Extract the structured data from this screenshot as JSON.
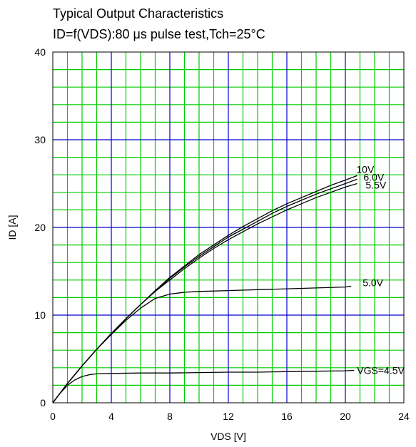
{
  "chart_data": {
    "type": "line",
    "title": "Typical Output Characteristics",
    "subtitle": "ID=f(VDS):80 μs pulse test,Tch=25°C",
    "xlabel": "VDS [V]",
    "ylabel": "ID [A]",
    "xlim": [
      0,
      24
    ],
    "ylim": [
      0,
      40
    ],
    "x_major_ticks": [
      0,
      4,
      8,
      12,
      16,
      20,
      24
    ],
    "y_major_ticks": [
      0,
      10,
      20,
      30,
      40
    ],
    "x_minor_step": 1,
    "y_minor_step": 2,
    "grid": true,
    "legend": "inline labels at right end of curves",
    "colors": {
      "background": "#ffffff",
      "minor_grid": "#00cc00",
      "major_grid": "#0000cc",
      "curve": "#000000",
      "frame": "#000000"
    },
    "series": [
      {
        "name": "10V",
        "x": [
          0,
          1,
          2,
          3,
          4,
          5,
          6,
          7,
          8,
          9,
          10,
          11,
          12,
          13,
          14,
          15,
          16,
          17,
          18,
          19,
          20,
          20.8
        ],
        "y": [
          0,
          2.2,
          4.2,
          6.1,
          7.9,
          9.6,
          11.2,
          12.8,
          14.3,
          15.6,
          16.9,
          18.0,
          19.1,
          20.1,
          21.0,
          21.9,
          22.7,
          23.4,
          24.1,
          24.8,
          25.4,
          25.9
        ]
      },
      {
        "name": "6.0V",
        "x": [
          0,
          1,
          2,
          3,
          4,
          5,
          6,
          7,
          8,
          9,
          10,
          11,
          12,
          13,
          14,
          15,
          16,
          17,
          18,
          19,
          20,
          20.8
        ],
        "y": [
          0,
          2.2,
          4.2,
          6.1,
          7.9,
          9.6,
          11.2,
          12.7,
          14.2,
          15.5,
          16.7,
          17.8,
          18.9,
          19.8,
          20.7,
          21.6,
          22.4,
          23.1,
          23.8,
          24.4,
          25.0,
          25.5
        ]
      },
      {
        "name": "5.5V",
        "x": [
          0,
          1,
          2,
          3,
          4,
          5,
          6,
          7,
          8,
          9,
          10,
          11,
          12,
          13,
          14,
          15,
          16,
          17,
          18,
          19,
          20,
          20.8
        ],
        "y": [
          0,
          2.2,
          4.2,
          6.1,
          7.9,
          9.6,
          11.2,
          12.7,
          14.0,
          15.3,
          16.5,
          17.6,
          18.6,
          19.5,
          20.4,
          21.2,
          22.0,
          22.7,
          23.4,
          24.0,
          24.6,
          25.0
        ]
      },
      {
        "name": "5.0V",
        "x": [
          0,
          1,
          2,
          3,
          4,
          5,
          6,
          7,
          8,
          9,
          10,
          12,
          14,
          16,
          18,
          20,
          20.4
        ],
        "y": [
          0,
          2.2,
          4.2,
          6.1,
          7.8,
          9.4,
          10.8,
          11.9,
          12.4,
          12.6,
          12.7,
          12.8,
          12.9,
          13.0,
          13.1,
          13.2,
          13.3
        ]
      },
      {
        "name": "VGS=4.5V",
        "x": [
          0,
          0.5,
          1,
          1.5,
          2,
          2.5,
          3,
          4,
          6,
          8,
          10,
          12,
          14,
          16,
          18,
          20,
          20.6
        ],
        "y": [
          0,
          1.1,
          2.0,
          2.6,
          3.0,
          3.2,
          3.3,
          3.35,
          3.4,
          3.4,
          3.45,
          3.5,
          3.5,
          3.55,
          3.6,
          3.65,
          3.7
        ]
      }
    ]
  }
}
